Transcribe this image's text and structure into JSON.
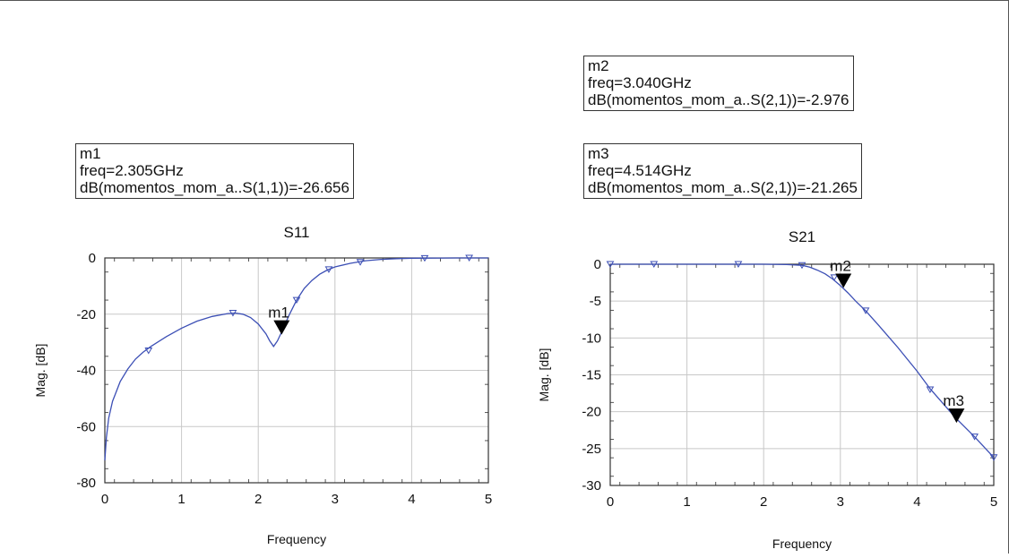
{
  "markers": [
    {
      "name": "m1",
      "freq": "freq=2.305GHz",
      "value": "dB(momentos_mom_a..S(1,1))=-26.656",
      "x": 2.305,
      "y": -26.656
    },
    {
      "name": "m2",
      "freq": "freq=3.040GHz",
      "value": "dB(momentos_mom_a..S(2,1))=-2.976",
      "x": 3.04,
      "y": -2.976
    },
    {
      "name": "m3",
      "freq": "freq=4.514GHz",
      "value": "dB(momentos_mom_a..S(2,1))=-21.265",
      "x": 4.514,
      "y": -21.265
    }
  ],
  "chart_data": [
    {
      "type": "line",
      "title": "S11",
      "xlabel": "Frequency",
      "ylabel": "Mag. [dB]",
      "xlim": [
        0,
        5
      ],
      "ylim": [
        -80,
        0
      ],
      "xticks": [
        "0",
        "1",
        "2",
        "3",
        "4",
        "5"
      ],
      "yticks": [
        "0",
        "-20",
        "-40",
        "-60",
        "-80"
      ],
      "grid": true,
      "color": "#3c4fb5",
      "series": [
        {
          "x": [
            0.0,
            0.02,
            0.05,
            0.1,
            0.2,
            0.3,
            0.4,
            0.5,
            0.6,
            0.8,
            1.0,
            1.2,
            1.4,
            1.6,
            1.7,
            1.8,
            1.9,
            2.0,
            2.1,
            2.15,
            2.2,
            2.25,
            2.3,
            2.4,
            2.5,
            2.6,
            2.7,
            2.8,
            2.9,
            3.0,
            3.2,
            3.4,
            3.6,
            3.8,
            4.0,
            4.2,
            4.4,
            4.6,
            4.8,
            5.0
          ],
          "y": [
            -72,
            -64,
            -57,
            -51,
            -44,
            -39.5,
            -36,
            -33.5,
            -31.5,
            -28,
            -25,
            -22.5,
            -20.8,
            -19.8,
            -19.6,
            -20,
            -21.2,
            -23.5,
            -27,
            -29.5,
            -31.5,
            -29.5,
            -26.6,
            -20.5,
            -15,
            -10.8,
            -8,
            -5.8,
            -4.3,
            -3.2,
            -1.9,
            -1.0,
            -0.5,
            -0.25,
            -0.1,
            -0.05,
            -0.02,
            -0.01,
            0,
            0
          ]
        }
      ],
      "symbols": {
        "x": [
          0.57,
          1.67,
          2.5,
          2.92,
          3.33,
          4.17,
          4.75
        ],
        "y": [
          -33,
          -19.6,
          -15,
          -4.1,
          -1.5,
          -0.1,
          0
        ]
      },
      "marker_refs": [
        0
      ]
    },
    {
      "type": "line",
      "title": "S21",
      "xlabel": "Frequency",
      "ylabel": "Mag. [dB]",
      "xlim": [
        0,
        5
      ],
      "ylim": [
        -30,
        0
      ],
      "xticks": [
        "0",
        "1",
        "2",
        "3",
        "4",
        "5"
      ],
      "yticks": [
        "0",
        "-5",
        "-10",
        "-15",
        "-20",
        "-25",
        "-30"
      ],
      "grid": true,
      "color": "#3c4fb5",
      "series": [
        {
          "x": [
            0.0,
            0.5,
            1.0,
            1.5,
            2.0,
            2.3,
            2.5,
            2.6,
            2.7,
            2.8,
            2.9,
            3.0,
            3.1,
            3.2,
            3.33,
            3.5,
            3.75,
            4.0,
            4.17,
            4.5,
            4.75,
            5.0
          ],
          "y": [
            0,
            0,
            0,
            0,
            0,
            -0.05,
            -0.15,
            -0.4,
            -0.8,
            -1.3,
            -2.0,
            -2.9,
            -3.9,
            -5.0,
            -6.3,
            -8.3,
            -11.3,
            -14.5,
            -16.9,
            -20.8,
            -23.4,
            -26.2
          ]
        }
      ],
      "symbols": {
        "x": [
          0.0,
          0.57,
          1.67,
          2.5,
          2.92,
          3.33,
          4.17,
          4.75,
          5.0
        ],
        "y": [
          0,
          0,
          0,
          -0.15,
          -1.8,
          -6.3,
          -17,
          -23.4,
          -26.2
        ]
      },
      "marker_refs": [
        1,
        2
      ]
    }
  ]
}
